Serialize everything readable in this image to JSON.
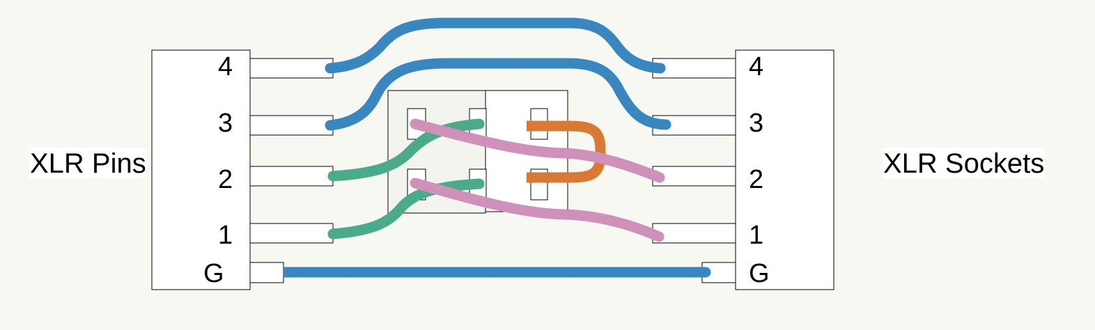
{
  "left_connector": {
    "label": "XLR Pins",
    "pins": [
      "4",
      "3",
      "2",
      "1",
      "G"
    ]
  },
  "right_connector": {
    "label": "XLR Sockets",
    "pins": [
      "4",
      "3",
      "2",
      "1",
      "G"
    ]
  },
  "colors": {
    "background": "#f8f8f3",
    "ground": "#3987c1",
    "pair_blue": "#3987c1",
    "pair_green": "#4aab8b",
    "pair_pink": "#cf91b9",
    "jumper_orange": "#d87a33",
    "outline": "#000000",
    "fill": "#ffffff"
  }
}
